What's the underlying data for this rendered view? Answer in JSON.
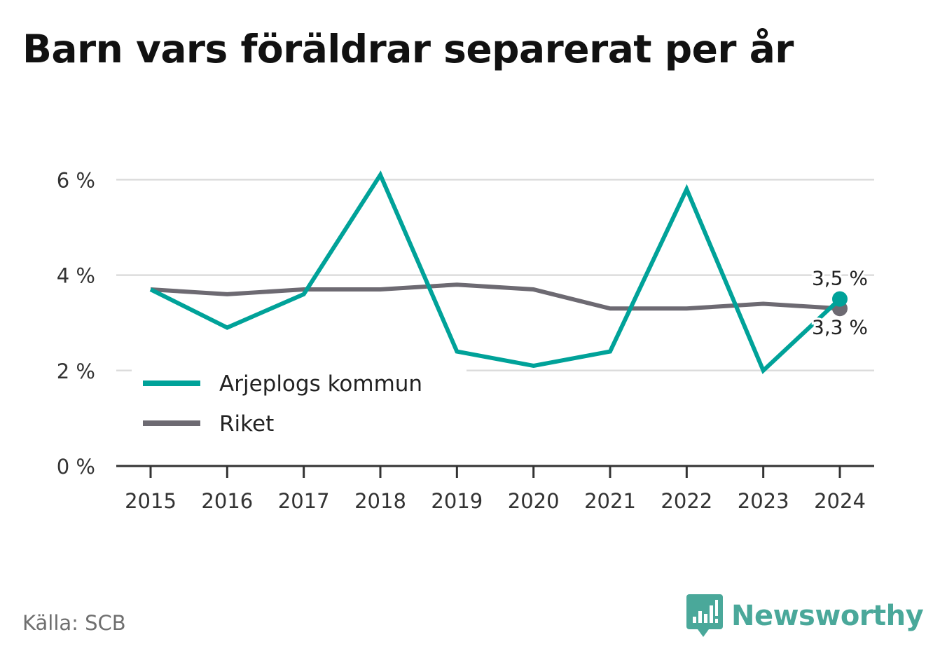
{
  "title": "Barn vars föräldrar separerat per år",
  "source": "Källa: SCB",
  "brand": {
    "name": "Newsworthy",
    "icon": "bar-chart-speech-bubble-icon",
    "color": "#4aa89a"
  },
  "colors": {
    "accent": "#00a299",
    "secondary": "#6d6a72",
    "grid": "#dcdcdc",
    "axis": "#333333"
  },
  "chart_data": {
    "type": "line",
    "x": [
      "2015",
      "2016",
      "2017",
      "2018",
      "2019",
      "2020",
      "2021",
      "2022",
      "2023",
      "2024"
    ],
    "series": [
      {
        "name": "Arjeplogs kommun",
        "color": "#00a299",
        "values": [
          3.7,
          2.9,
          3.6,
          6.1,
          2.4,
          2.1,
          2.4,
          5.8,
          2.0,
          3.5
        ]
      },
      {
        "name": "Riket",
        "color": "#6d6a72",
        "values": [
          3.7,
          3.6,
          3.7,
          3.7,
          3.8,
          3.7,
          3.3,
          3.3,
          3.4,
          3.3
        ]
      }
    ],
    "yticks": [
      0,
      2,
      4,
      6
    ],
    "ytick_labels": [
      "0 %",
      "2 %",
      "4 %",
      "6 %"
    ],
    "ylim": [
      0,
      6
    ],
    "grid": true,
    "legend_position": "bottom-left",
    "end_labels": [
      "3,5 %",
      "3,3 %"
    ]
  }
}
